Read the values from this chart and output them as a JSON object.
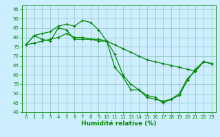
{
  "xlabel": "Humidité relative (%)",
  "background_color": "#cceeff",
  "grid_color": "#99cccc",
  "line_color": "#008800",
  "xlim": [
    -0.5,
    23.5
  ],
  "ylim": [
    40,
    97
  ],
  "yticks": [
    40,
    45,
    50,
    55,
    60,
    65,
    70,
    75,
    80,
    85,
    90,
    95
  ],
  "xticks": [
    0,
    1,
    2,
    3,
    4,
    5,
    6,
    7,
    8,
    9,
    10,
    11,
    12,
    13,
    14,
    15,
    16,
    17,
    18,
    19,
    20,
    21,
    22,
    23
  ],
  "line1": {
    "x": [
      0,
      1,
      2,
      3,
      4,
      5,
      6,
      7,
      8,
      9,
      10,
      11,
      12,
      13,
      14,
      15,
      16,
      17,
      18,
      19,
      20,
      21,
      22,
      23
    ],
    "y": [
      76,
      81,
      82,
      83,
      86,
      87,
      86,
      89,
      88,
      84,
      78,
      71,
      60,
      55,
      52,
      48,
      47,
      46,
      47,
      50,
      58,
      62,
      67,
      66
    ]
  },
  "line2": {
    "x": [
      0,
      1,
      2,
      3,
      4,
      5,
      6,
      7,
      8,
      9,
      10,
      11,
      12,
      13,
      14,
      15,
      16,
      17,
      18,
      19,
      20,
      21,
      22,
      23
    ],
    "y": [
      76,
      77,
      78,
      79,
      80,
      82,
      80,
      80,
      79,
      79,
      78,
      76,
      74,
      72,
      70,
      68,
      67,
      66,
      65,
      64,
      63,
      62,
      67,
      66
    ]
  },
  "line3": {
    "x": [
      0,
      1,
      2,
      3,
      4,
      5,
      6,
      7,
      8,
      9,
      10,
      11,
      12,
      13,
      14,
      15,
      16,
      17,
      18,
      19,
      20,
      21,
      22,
      23
    ],
    "y": [
      76,
      81,
      79,
      78,
      85,
      84,
      79,
      79,
      79,
      78,
      78,
      64,
      59,
      52,
      52,
      49,
      48,
      45,
      47,
      49,
      57,
      63,
      67,
      66
    ]
  },
  "xlabel_fontsize": 6.5,
  "tick_fontsize": 5.0,
  "linewidth": 0.9,
  "markersize": 3.0
}
